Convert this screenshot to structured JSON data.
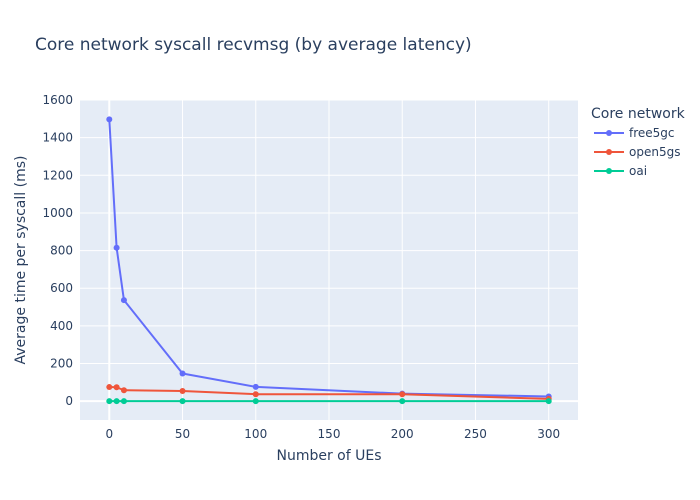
{
  "chart_data": {
    "type": "line",
    "title": "Core network syscall recvmsg (by average latency)",
    "xlabel": "Number of UEs",
    "ylabel": "Average time per syscall (ms)",
    "xlim": [
      -20,
      320
    ],
    "ylim": [
      -100,
      1600
    ],
    "xticks": [
      0,
      50,
      100,
      150,
      200,
      250,
      300
    ],
    "yticks": [
      0,
      200,
      400,
      600,
      800,
      1000,
      1200,
      1400,
      1600
    ],
    "grid": true,
    "plot_background": "#e5ecf6",
    "legend": {
      "title": "Core network",
      "placement": "top-right"
    },
    "series": [
      {
        "name": "free5gc",
        "color": "#636efa",
        "x": [
          0,
          5,
          10,
          50,
          100,
          200,
          300
        ],
        "y": [
          1497,
          815,
          537,
          147,
          76,
          40,
          25
        ]
      },
      {
        "name": "open5gs",
        "color": "#ef553b",
        "x": [
          0,
          5,
          10,
          50,
          100,
          200,
          300
        ],
        "y": [
          75,
          74,
          58,
          54,
          37,
          37,
          12
        ]
      },
      {
        "name": "oai",
        "color": "#00cc96",
        "x": [
          0,
          5,
          10,
          50,
          100,
          200,
          300
        ],
        "y": [
          0,
          0,
          0,
          0,
          0,
          0,
          0
        ]
      }
    ]
  }
}
